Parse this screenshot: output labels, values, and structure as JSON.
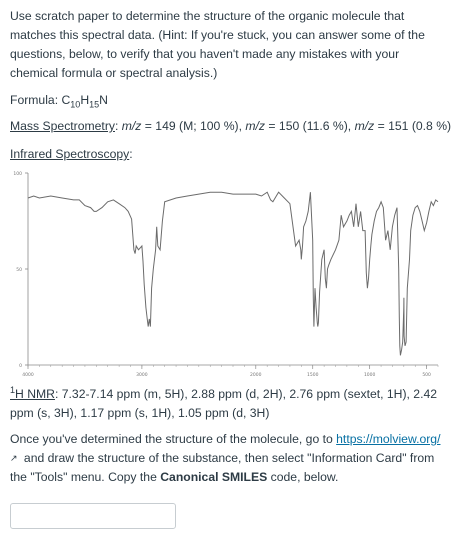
{
  "intro": "Use scratch paper to determine the structure of the organic molecule that matches this spectral data.  (Hint: If you're stuck, you can answer some of the questions, below, to verify that you haven't made any mistakes with your chemical formula or spectral analysis.)",
  "formula": {
    "label": "Formula: ",
    "c": "C",
    "c_count": "10",
    "h": "H",
    "h_count": "15",
    "n": "N"
  },
  "mass_spec": {
    "label": "Mass Spectrometry",
    "colon": ": ",
    "mz1": "m/z",
    "v1": " = 149 (M; 100 %), ",
    "mz2": "m/z",
    "v2": " = 150 (11.6 %), ",
    "mz3": "m/z",
    "v3": " = 151 (0.8 %)"
  },
  "ir": {
    "label": "Infrared Spectroscopy",
    "colon": ":",
    "y_ticks": [
      "100",
      "50",
      "0"
    ],
    "x_ticks": [
      "4000",
      "3000",
      "2000",
      "1500",
      "1000",
      "500"
    ]
  },
  "chart_data": {
    "type": "line",
    "xlabel": "",
    "ylabel": "",
    "xlim": [
      4000,
      400
    ],
    "ylim": [
      0,
      100
    ],
    "x_ticks": [
      4000,
      3000,
      2000,
      1500,
      1000,
      500
    ],
    "y_ticks": [
      0,
      50,
      100
    ],
    "series": [
      {
        "x": [
          4000,
          3950,
          3900,
          3800,
          3700,
          3600,
          3550,
          3500,
          3450,
          3420,
          3400,
          3350,
          3300,
          3250,
          3200,
          3150,
          3120,
          3090,
          3070,
          3060,
          3050,
          3030,
          3000,
          2990,
          2980,
          2965,
          2955,
          2945,
          2935,
          2925,
          2915,
          2900,
          2880,
          2870,
          2860,
          2840,
          2820,
          2800,
          2700,
          2600,
          2500,
          2400,
          2300,
          2200,
          2100,
          2000,
          1950,
          1900,
          1870,
          1850,
          1820,
          1800,
          1750,
          1700,
          1650,
          1620,
          1605,
          1600,
          1590,
          1580,
          1560,
          1540,
          1520,
          1500,
          1495,
          1490,
          1480,
          1470,
          1460,
          1455,
          1450,
          1440,
          1420,
          1400,
          1390,
          1380,
          1370,
          1360,
          1340,
          1300,
          1270,
          1250,
          1230,
          1200,
          1180,
          1160,
          1140,
          1120,
          1100,
          1080,
          1060,
          1040,
          1030,
          1020,
          1010,
          1000,
          990,
          980,
          960,
          940,
          920,
          900,
          880,
          860,
          840,
          820,
          800,
          780,
          760,
          750,
          745,
          740,
          735,
          730,
          720,
          710,
          700,
          699,
          698,
          690,
          680,
          670,
          650,
          640,
          620,
          600,
          580,
          560,
          540,
          520,
          500,
          480,
          460,
          440,
          420,
          400
        ],
        "y": [
          87,
          88,
          87,
          88,
          87,
          86,
          86,
          83,
          82,
          80,
          80,
          82,
          85,
          86,
          84,
          82,
          80,
          76,
          60,
          58,
          62,
          60,
          62,
          54,
          42,
          30,
          25,
          20,
          24,
          20,
          40,
          50,
          60,
          72,
          62,
          60,
          75,
          85,
          87,
          88,
          89,
          90,
          90,
          89,
          89,
          89,
          88,
          90,
          86,
          85,
          88,
          90,
          87,
          84,
          62,
          65,
          60,
          55,
          62,
          72,
          75,
          80,
          90,
          65,
          35,
          20,
          40,
          30,
          22,
          20,
          22,
          38,
          55,
          60,
          45,
          40,
          50,
          52,
          55,
          60,
          65,
          78,
          72,
          75,
          78,
          80,
          72,
          84,
          72,
          80,
          70,
          70,
          48,
          40,
          45,
          55,
          62,
          68,
          75,
          80,
          82,
          85,
          82,
          65,
          70,
          60,
          72,
          78,
          82,
          62,
          50,
          25,
          10,
          5,
          8,
          12,
          30,
          35,
          15,
          10,
          12,
          40,
          55,
          70,
          78,
          82,
          83,
          80,
          75,
          70,
          74,
          80,
          85,
          83,
          86,
          85
        ]
      }
    ]
  },
  "nmr": {
    "label_sup": "1",
    "label_rest": "H NMR",
    "colon": ": ",
    "text": "7.32-7.14 ppm (m, 5H), 2.88 ppm (d, 2H), 2.76 ppm (sextet, 1H), 2.42 ppm (s, 3H), 1.17 ppm (s, 1H), 1.05 ppm (d, 3H)"
  },
  "instructions": {
    "part1": "Once you've determined the structure of the molecule, go to ",
    "link": "https://molview.org/",
    "ext_icon": "external-link-icon",
    "part2": " and draw the structure of the substance, then select \"Information Card\" from the \"Tools\" menu.  Copy the ",
    "bold": "Canonical SMILES",
    "part3": " code, below."
  },
  "answer": {
    "value": "",
    "placeholder": ""
  }
}
